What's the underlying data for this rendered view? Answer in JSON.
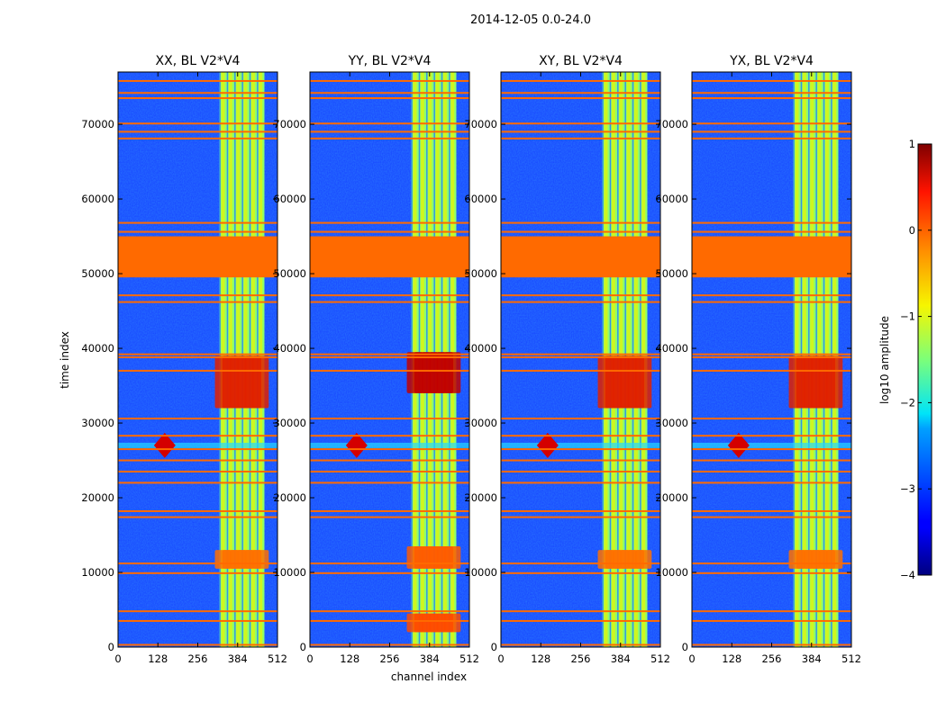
{
  "figure": {
    "suptitle": "2014-12-05 0.0-24.0"
  },
  "chart_data": {
    "type": "heatmap",
    "colormap": "jet",
    "xlabel": "channel index",
    "ylabel": "time index",
    "xlim": [
      0,
      512
    ],
    "ylim": [
      0,
      77000
    ],
    "xticks": [
      0,
      128,
      256,
      384,
      512
    ],
    "yticks": [
      0,
      10000,
      20000,
      30000,
      40000,
      50000,
      60000,
      70000
    ],
    "panels": [
      {
        "title": "XX, BL V2*V4",
        "pol": "XX"
      },
      {
        "title": "YY, BL V2*V4",
        "pol": "YY"
      },
      {
        "title": "XY, BL V2*V4",
        "pol": "XY"
      },
      {
        "title": "YX, BL V2*V4",
        "pol": "YX"
      }
    ],
    "flagged_time_block": [
      49500,
      55000
    ],
    "flagged_time_lines": [
      300,
      3500,
      4800,
      9900,
      11200,
      17400,
      18200,
      22000,
      23500,
      25000,
      26500,
      28300,
      30600,
      37000,
      38800,
      39200,
      46200,
      47100,
      55600,
      56800,
      68100,
      69000,
      70100,
      73500,
      74200,
      75800
    ],
    "bright_channel_band": [
      325,
      470
    ],
    "rfi_feature": {
      "channel": 150,
      "time": 27000
    },
    "colorbar": {
      "label": "log10 amplitude",
      "min": -4,
      "max": 1,
      "ticks": [
        1,
        0,
        -1,
        -2,
        -3,
        -4
      ]
    }
  }
}
